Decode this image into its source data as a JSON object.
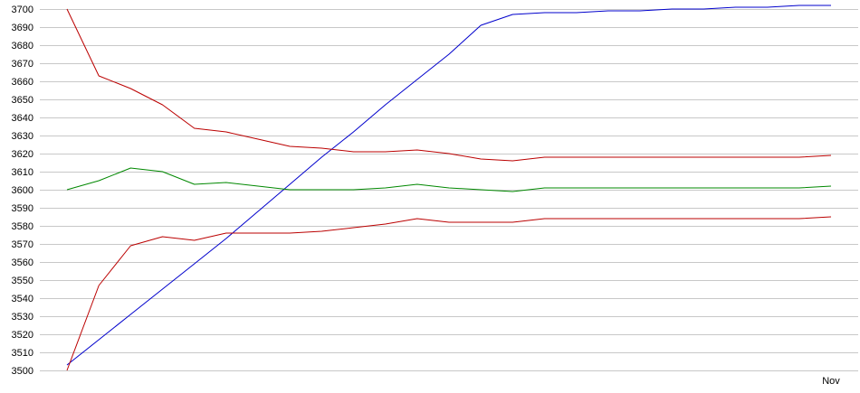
{
  "chart_data": {
    "type": "line",
    "title": "",
    "xlabel": "",
    "ylabel": "",
    "ylim": [
      3500,
      3700
    ],
    "yticks": [
      3500,
      3510,
      3520,
      3530,
      3540,
      3550,
      3560,
      3570,
      3580,
      3590,
      3600,
      3610,
      3620,
      3630,
      3640,
      3650,
      3660,
      3670,
      3680,
      3690,
      3700
    ],
    "xticks": [
      {
        "label": "Nov",
        "index": 24
      }
    ],
    "grid": true,
    "legend": "none",
    "x": [
      0,
      1,
      2,
      3,
      4,
      5,
      6,
      7,
      8,
      9,
      10,
      11,
      12,
      13,
      14,
      15,
      16,
      17,
      18,
      19,
      20,
      21,
      22,
      23,
      24
    ],
    "series": [
      {
        "color": "#0000cc",
        "values": [
          3503,
          3517,
          3531,
          3545,
          3559,
          3573,
          3588,
          3603,
          3618,
          3632,
          3647,
          3661,
          3675,
          3691,
          3697,
          3698,
          3698,
          3699,
          3699,
          3700,
          3700,
          3701,
          3701,
          3702,
          3702
        ]
      },
      {
        "color": "#bb0000",
        "values": [
          3700,
          3663,
          3656,
          3647,
          3634,
          3632,
          3628,
          3624,
          3623,
          3621,
          3621,
          3622,
          3620,
          3617,
          3616,
          3618,
          3618,
          3618,
          3618,
          3618,
          3618,
          3618,
          3618,
          3618,
          3619
        ]
      },
      {
        "color": "#008800",
        "values": [
          3600,
          3605,
          3612,
          3610,
          3603,
          3604,
          3602,
          3600,
          3600,
          3600,
          3601,
          3603,
          3601,
          3600,
          3599,
          3601,
          3601,
          3601,
          3601,
          3601,
          3601,
          3601,
          3601,
          3601,
          3602
        ]
      },
      {
        "color": "#bb0000",
        "values": [
          3500,
          3547,
          3569,
          3574,
          3572,
          3576,
          3576,
          3576,
          3577,
          3579,
          3581,
          3584,
          3582,
          3582,
          3582,
          3584,
          3584,
          3584,
          3584,
          3584,
          3584,
          3584,
          3584,
          3584,
          3585
        ]
      }
    ]
  }
}
